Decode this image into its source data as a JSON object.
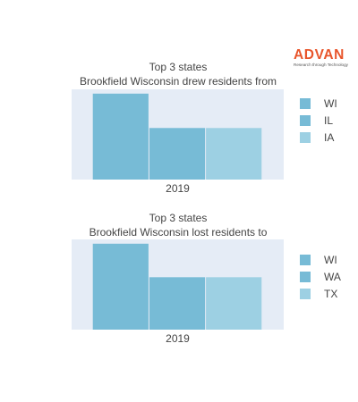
{
  "logo": {
    "word": "ADVAN",
    "tagline": "Research through Technology",
    "color": "#e8552b"
  },
  "colors": {
    "plot_background": "#e5ecf6",
    "series": [
      "#77bbd6",
      "#77bbd6",
      "#9dd0e3"
    ]
  },
  "chart_data": [
    {
      "type": "bar",
      "title_line1": "Top 3 states",
      "title_line2": "Brookfield Wisconsin drew residents from",
      "categories": [
        "2019"
      ],
      "series": [
        {
          "name": "WI",
          "values": [
            1.0
          ]
        },
        {
          "name": "IL",
          "values": [
            0.6
          ]
        },
        {
          "name": "IA",
          "values": [
            0.6
          ]
        }
      ],
      "ylim": [
        0,
        1.05
      ],
      "legend_position": "right",
      "grid": false
    },
    {
      "type": "bar",
      "title_line1": "Top 3 states",
      "title_line2": "Brookfield Wisconsin lost residents to",
      "categories": [
        "2019"
      ],
      "series": [
        {
          "name": "WI",
          "values": [
            1.0
          ]
        },
        {
          "name": "WA",
          "values": [
            0.61
          ]
        },
        {
          "name": "TX",
          "values": [
            0.61
          ]
        }
      ],
      "ylim": [
        0,
        1.05
      ],
      "legend_position": "right",
      "grid": false
    }
  ]
}
